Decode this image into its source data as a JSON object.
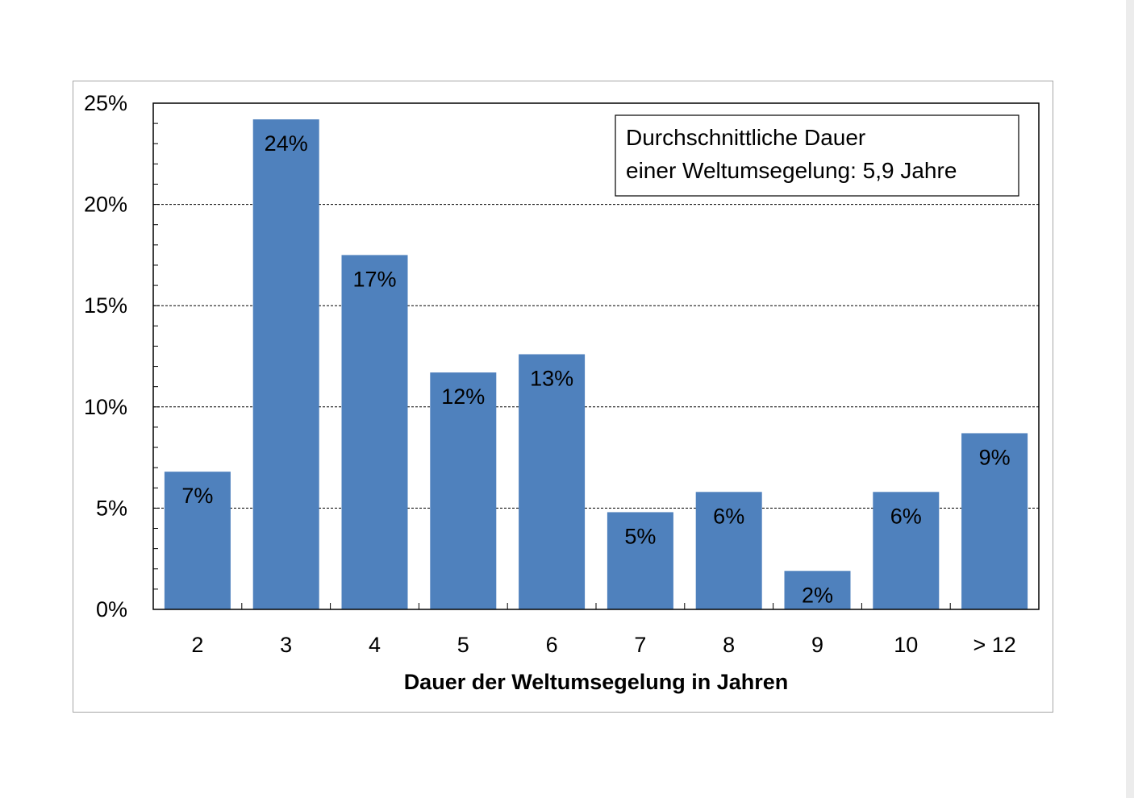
{
  "chart_data": {
    "type": "bar",
    "categories": [
      "2",
      "3",
      "4",
      "5",
      "6",
      "7",
      "8",
      "9",
      "10",
      "> 12"
    ],
    "values": [
      6.8,
      24.2,
      17.5,
      11.7,
      12.6,
      4.8,
      5.8,
      1.9,
      5.8,
      8.7
    ],
    "data_labels": [
      "7%",
      "24%",
      "17%",
      "12%",
      "13%",
      "5%",
      "6%",
      "2%",
      "6%",
      "9%"
    ],
    "title": "",
    "xlabel": "Dauer der Weltumsegelung in Jahren",
    "ylabel": "",
    "ylim": [
      0,
      25
    ],
    "yticks": [
      0,
      5,
      10,
      15,
      20,
      25
    ],
    "ytick_labels": [
      "0%",
      "5%",
      "10%",
      "15%",
      "20%",
      "25%"
    ],
    "grid": true,
    "bar_color": "#4f81bd",
    "annotation": {
      "line1": "Durchschnittliche Dauer",
      "line2": "einer Weltumsegelung: 5,9 Jahre"
    }
  }
}
